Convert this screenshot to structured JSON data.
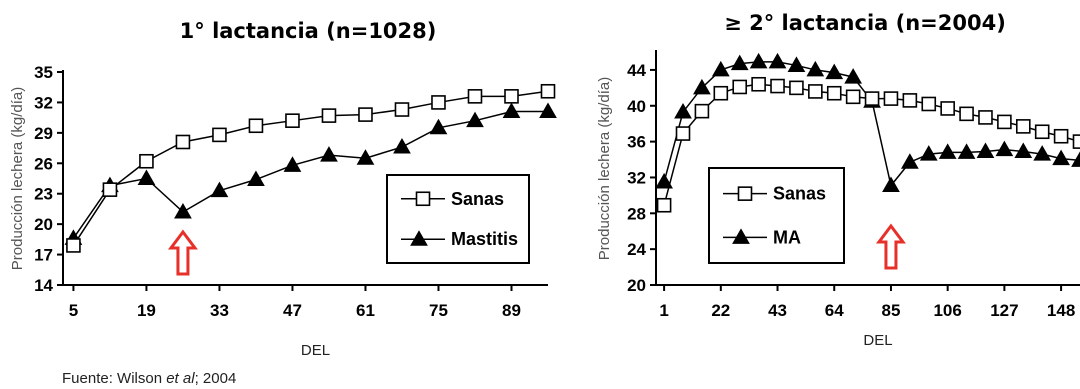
{
  "chart_data": [
    {
      "type": "line",
      "title": "1° lactancia (n=1028)",
      "ylabel": "Producción lechera (kg/día)",
      "xlabel": "DEL",
      "ylim": [
        14,
        35
      ],
      "yticks": [
        14,
        17,
        20,
        23,
        26,
        29,
        32,
        35
      ],
      "xlim": [
        3,
        96
      ],
      "xticks": [
        5,
        19,
        33,
        47,
        61,
        75,
        89
      ],
      "grid": false,
      "legend_position": "bottom-right",
      "series": [
        {
          "name": "Sanas",
          "marker": "open-square",
          "x": [
            5,
            12,
            19,
            26,
            33,
            40,
            47,
            54,
            61,
            68,
            75,
            82,
            89,
            96
          ],
          "y": [
            17.9,
            23.4,
            26.2,
            28.1,
            28.8,
            29.7,
            30.2,
            30.7,
            30.8,
            31.3,
            32.0,
            32.6,
            32.6,
            33.1
          ]
        },
        {
          "name": "Mastitis",
          "marker": "filled-triangle",
          "x": [
            5,
            12,
            19,
            26,
            33,
            40,
            47,
            54,
            61,
            68,
            75,
            82,
            89,
            96
          ],
          "y": [
            18.6,
            23.8,
            24.5,
            21.2,
            23.3,
            24.4,
            25.8,
            26.8,
            26.5,
            27.6,
            29.5,
            30.2,
            31.1,
            31.1
          ]
        }
      ]
    },
    {
      "type": "line",
      "title": "≥ 2° lactancia (n=2004)",
      "ylabel": "Producción lechera (kg/día)",
      "xlabel": "DEL",
      "ylim": [
        20,
        46
      ],
      "yticks": [
        20,
        24,
        28,
        32,
        36,
        40,
        44
      ],
      "xlim": [
        -2,
        155
      ],
      "xticks": [
        1,
        22,
        43,
        64,
        85,
        106,
        127,
        148
      ],
      "grid": false,
      "legend_position": "bottom-left",
      "series": [
        {
          "name": "Sanas",
          "marker": "open-square",
          "x": [
            1,
            8,
            15,
            22,
            29,
            36,
            43,
            50,
            57,
            64,
            71,
            78,
            85,
            92,
            99,
            106,
            113,
            120,
            127,
            134,
            141,
            148,
            155
          ],
          "y": [
            28.9,
            36.9,
            39.4,
            41.4,
            42.1,
            42.4,
            42.2,
            42.0,
            41.6,
            41.4,
            41.0,
            40.8,
            40.8,
            40.6,
            40.2,
            39.7,
            39.1,
            38.7,
            38.2,
            37.7,
            37.1,
            36.6,
            36.0
          ]
        },
        {
          "name": "MA",
          "marker": "filled-triangle",
          "x": [
            1,
            8,
            15,
            22,
            29,
            36,
            43,
            50,
            57,
            64,
            71,
            78,
            85,
            92,
            99,
            106,
            113,
            120,
            127,
            134,
            141,
            148,
            155
          ],
          "y": [
            31.5,
            39.3,
            42.0,
            44.0,
            44.7,
            44.9,
            44.9,
            44.5,
            44.0,
            43.7,
            43.2,
            40.5,
            31.1,
            33.7,
            34.6,
            34.8,
            34.8,
            34.9,
            35.1,
            34.9,
            34.6,
            34.1,
            33.9
          ]
        }
      ]
    }
  ],
  "annotations": {
    "arrow_1_x": 26,
    "arrow_2_x": 85,
    "arrow_color": "#e8302a"
  },
  "source": {
    "prefix": "Fuente: Wilson ",
    "italic": "et al",
    "suffix": "; 2004"
  }
}
